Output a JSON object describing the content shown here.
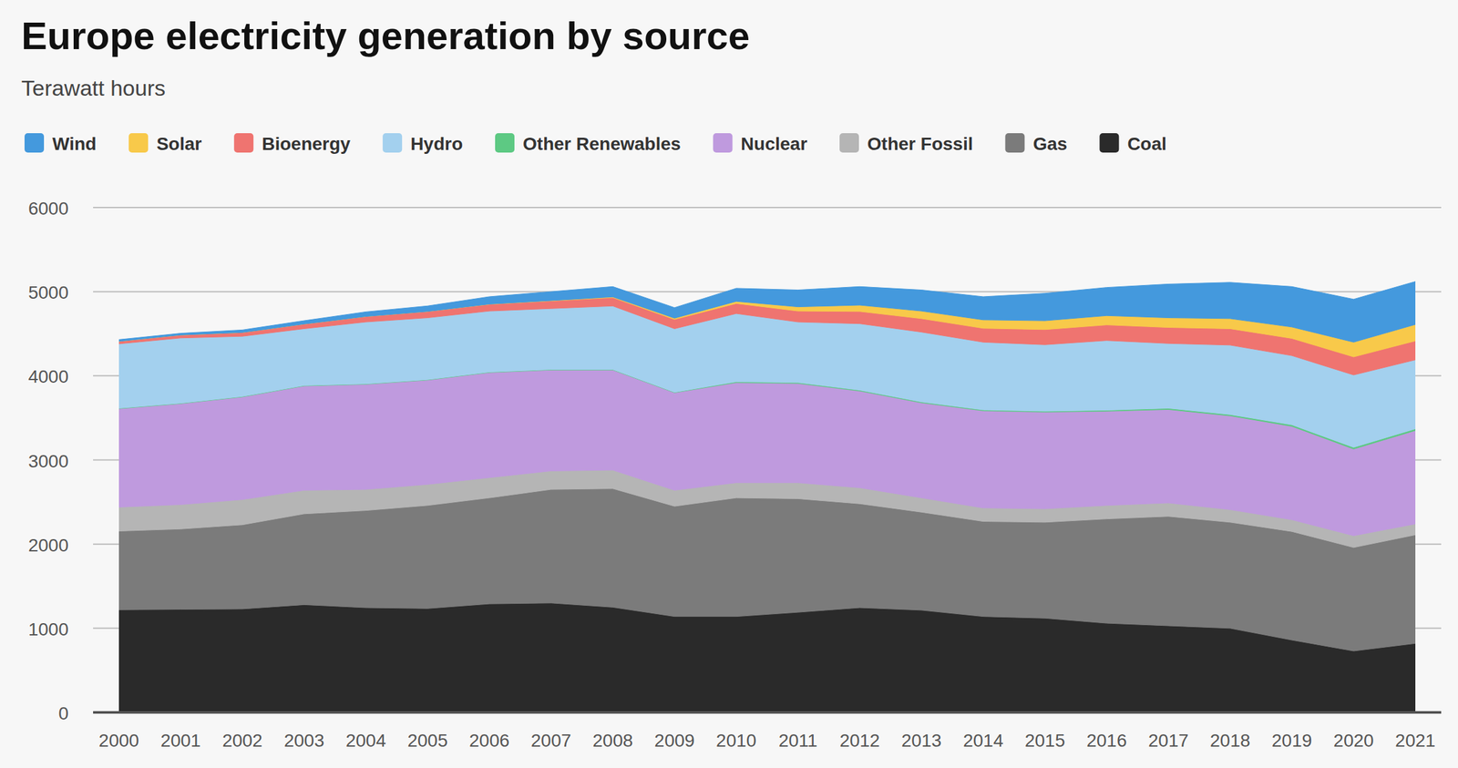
{
  "chart_data": {
    "type": "area",
    "title": "Europe electricity generation by source",
    "subtitle": "Terawatt hours",
    "categories": [
      "2000",
      "2001",
      "2002",
      "2003",
      "2004",
      "2005",
      "2006",
      "2007",
      "2008",
      "2009",
      "2010",
      "2011",
      "2012",
      "2013",
      "2014",
      "2015",
      "2016",
      "2017",
      "2018",
      "2019",
      "2020",
      "2021"
    ],
    "series": [
      {
        "name": "Wind",
        "color": "#4499dd",
        "values": [
          20,
          20,
          30,
          40,
          55,
          65,
          88,
          106,
          122,
          125,
          155,
          200,
          220,
          250,
          275,
          325,
          335,
          400,
          430,
          480,
          510,
          510
        ]
      },
      {
        "name": "Solar",
        "color": "#f8c94a",
        "values": [
          0,
          0,
          0,
          0,
          0,
          0,
          2,
          4,
          8,
          15,
          25,
          50,
          75,
          90,
          100,
          105,
          110,
          115,
          120,
          135,
          175,
          195
        ]
      },
      {
        "name": "Bioenergy",
        "color": "#ef7470",
        "values": [
          30,
          35,
          45,
          55,
          65,
          75,
          80,
          90,
          100,
          110,
          120,
          130,
          145,
          160,
          165,
          180,
          185,
          190,
          195,
          205,
          215,
          225
        ]
      },
      {
        "name": "Hydro",
        "color": "#a3d0ee",
        "values": [
          765,
          775,
          715,
          675,
          735,
          735,
          725,
          725,
          755,
          755,
          810,
          720,
          790,
          830,
          805,
          790,
          828,
          770,
          825,
          822,
          860,
          820
        ]
      },
      {
        "name": "Other Renewables",
        "color": "#5dc983",
        "values": [
          5,
          5,
          5,
          5,
          5,
          5,
          5,
          5,
          5,
          5,
          10,
          10,
          10,
          10,
          10,
          10,
          12,
          15,
          15,
          18,
          20,
          20
        ]
      },
      {
        "name": "Nuclear",
        "color": "#bf9ade",
        "values": [
          1170,
          1200,
          1220,
          1240,
          1250,
          1240,
          1250,
          1200,
          1190,
          1160,
          1190,
          1180,
          1150,
          1130,
          1155,
          1150,
          1120,
          1110,
          1115,
          1110,
          1030,
          1110
        ]
      },
      {
        "name": "Other Fossil",
        "color": "#b5b5b5",
        "values": [
          285,
          290,
          300,
          280,
          250,
          250,
          240,
          220,
          220,
          190,
          180,
          190,
          190,
          170,
          160,
          160,
          160,
          160,
          150,
          140,
          140,
          130
        ]
      },
      {
        "name": "Gas",
        "color": "#7b7b7b",
        "values": [
          935,
          955,
          1000,
          1080,
          1155,
          1225,
          1260,
          1350,
          1410,
          1310,
          1410,
          1350,
          1235,
          1165,
          1130,
          1140,
          1240,
          1300,
          1260,
          1290,
          1230,
          1290
        ]
      },
      {
        "name": "Coal",
        "color": "#2a2a2a",
        "values": [
          1220,
          1225,
          1230,
          1280,
          1245,
          1235,
          1290,
          1300,
          1250,
          1140,
          1140,
          1190,
          1245,
          1215,
          1140,
          1120,
          1060,
          1030,
          1000,
          860,
          730,
          820
        ]
      }
    ],
    "ylim": [
      0,
      6000
    ],
    "yticks": [
      0,
      1000,
      2000,
      3000,
      4000,
      5000,
      6000
    ],
    "stacked": true,
    "grid": true,
    "legend": "top"
  }
}
